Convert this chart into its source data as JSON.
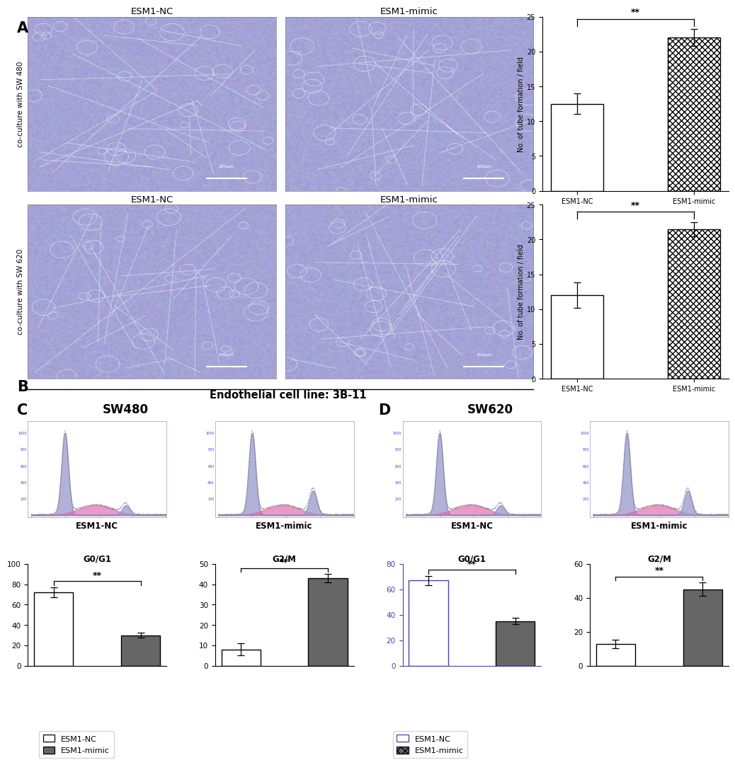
{
  "panel_A_bar": {
    "categories": [
      "ESM1-NC",
      "ESM1-mimic"
    ],
    "values": [
      12.5,
      22.0
    ],
    "errors": [
      1.5,
      1.2
    ],
    "ylabel": "No. of tube formation / field",
    "ylim": [
      0,
      25
    ],
    "yticks": [
      0,
      5,
      10,
      15,
      20,
      25
    ],
    "sig_text": "**",
    "hatch": [
      "",
      "xxxx"
    ]
  },
  "panel_B_bar": {
    "categories": [
      "ESM1-NC",
      "ESM1-mimic"
    ],
    "values": [
      12.0,
      21.5
    ],
    "errors": [
      1.8,
      1.0
    ],
    "ylabel": "No. of tube formation / field",
    "ylim": [
      0,
      25
    ],
    "yticks": [
      0,
      5,
      10,
      15,
      20,
      25
    ],
    "sig_text": "**",
    "hatch": [
      "",
      "xxxx"
    ]
  },
  "panel_C_G01": {
    "values": [
      72.0,
      30.0
    ],
    "errors": [
      5.0,
      2.5
    ],
    "title": "G0/G1",
    "ylim": [
      0,
      100
    ],
    "yticks": [
      0,
      20,
      40,
      60,
      80,
      100
    ],
    "sig_text": "**"
  },
  "panel_C_G2M": {
    "values": [
      8.0,
      43.0
    ],
    "errors": [
      3.0,
      2.0
    ],
    "title": "G2/M",
    "ylim": [
      0,
      50
    ],
    "yticks": [
      0,
      10,
      20,
      30,
      40,
      50
    ],
    "sig_text": "**"
  },
  "panel_D_G01": {
    "values": [
      67.0,
      35.0
    ],
    "errors": [
      3.5,
      2.5
    ],
    "title": "G0/G1",
    "ylim": [
      0,
      80
    ],
    "yticks": [
      0,
      20,
      40,
      60,
      80
    ],
    "sig_text": "**"
  },
  "panel_D_G2M": {
    "values": [
      13.0,
      45.0
    ],
    "errors": [
      2.5,
      4.0
    ],
    "title": "G2/M",
    "ylim": [
      0,
      60
    ],
    "yticks": [
      0,
      20,
      40,
      60
    ],
    "sig_text": "**"
  },
  "colors": {
    "white_bar": "white",
    "dark_bar": "#666666",
    "edge_black": "black",
    "edge_blue": "#4444aa"
  },
  "label_A": "A",
  "label_B": "B",
  "label_C": "C",
  "label_D": "D",
  "title_C": "SW480",
  "title_D": "SW620",
  "endothelial_label": "Endothelial cell line: 3B-11",
  "legend_NC": "ESM1-NC",
  "legend_mimic": "ESM1-mimic",
  "yrotate_label_A": "co-culture with SW 480",
  "yrotate_label_B": "co-culture with SW 620",
  "flow_labels_NC": "ESM1-NC",
  "flow_labels_mimic": "ESM1-mimic"
}
